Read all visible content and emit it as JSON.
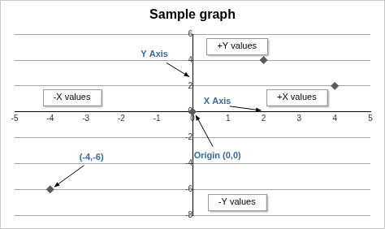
{
  "chart_data": {
    "type": "scatter",
    "title": "Sample graph",
    "x": [
      -4,
      0,
      2,
      4
    ],
    "values": [
      -6,
      0,
      4,
      2
    ],
    "color": "#5a5a5a",
    "marker": "diamond",
    "xlim": [
      -5,
      5
    ],
    "xticks": [
      -5,
      -4,
      -3,
      -2,
      -1,
      0,
      1,
      2,
      3,
      4,
      5
    ],
    "ylim": [
      -8,
      6
    ],
    "yticks": [
      -8,
      -6,
      -4,
      -2,
      0,
      2,
      4,
      6
    ],
    "grid": "y",
    "annotations": [
      "+Y values",
      "Y Axis",
      "-X values",
      "X Axis",
      "+X values",
      "(-4,-6)",
      "Origin (0,0)",
      "-Y values"
    ]
  }
}
